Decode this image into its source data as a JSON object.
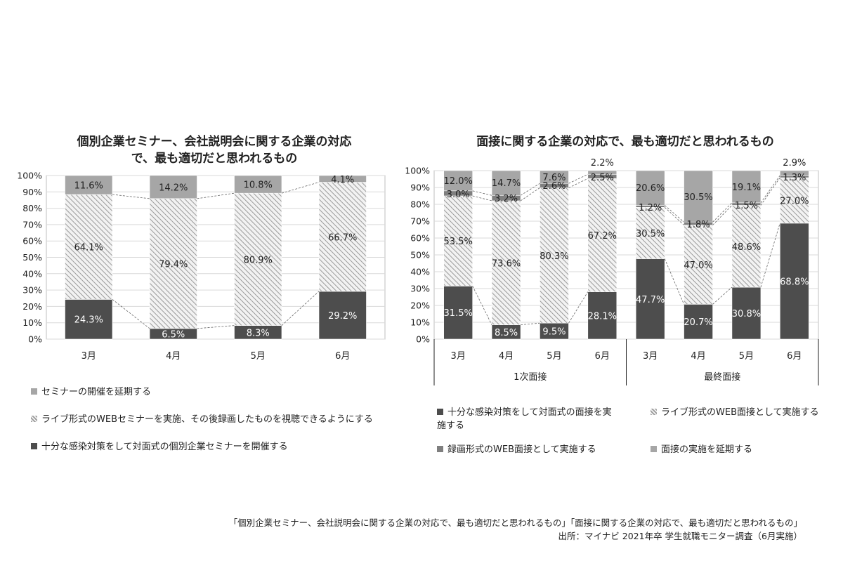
{
  "chart_data": [
    {
      "type": "bar",
      "stacked": true,
      "normalized": true,
      "title": "個別企業セミナー、会社説明会に関する企業の対応で、最も適切だと思われるもの",
      "categories": [
        "3月",
        "4月",
        "5月",
        "6月"
      ],
      "y_ticks": [
        "0%",
        "10%",
        "20%",
        "30%",
        "40%",
        "50%",
        "60%",
        "70%",
        "80%",
        "90%",
        "100%"
      ],
      "ylim": [
        0,
        100
      ],
      "grid": true,
      "legend_position": "bottom",
      "series": [
        {
          "name": "十分な感染対策をして対面式の個別企業セミナーを開催する",
          "values": [
            24.3,
            6.5,
            8.3,
            29.2
          ],
          "labels": [
            "24.3%",
            "6.5%",
            "8.3%",
            "29.2%"
          ],
          "color": "#4d4d4d"
        },
        {
          "name": "ライブ形式のWEBセミナーを実施、その後録画したものを視聴できるようにする",
          "values": [
            64.1,
            79.4,
            80.9,
            66.7
          ],
          "labels": [
            "64.1%",
            "79.4%",
            "80.9%",
            "66.7%"
          ],
          "color": "#d9d9d9"
        },
        {
          "name": "セミナーの開催を延期する",
          "values": [
            11.6,
            14.2,
            10.8,
            4.1
          ],
          "labels": [
            "11.6%",
            "14.2%",
            "10.8%",
            "4.1%"
          ],
          "color": "#a6a6a6"
        }
      ],
      "legend_order": [
        2,
        1,
        0
      ]
    },
    {
      "type": "bar",
      "stacked": true,
      "normalized": true,
      "title": "面接に関する企業の対応で、最も適切だと思われるもの",
      "categories": [
        "3月",
        "4月",
        "5月",
        "6月",
        "3月",
        "4月",
        "5月",
        "6月"
      ],
      "groups": [
        "1次面接",
        "最終面接"
      ],
      "y_ticks": [
        "0%",
        "10%",
        "20%",
        "30%",
        "40%",
        "50%",
        "60%",
        "70%",
        "80%",
        "90%",
        "100%"
      ],
      "ylim": [
        0,
        100
      ],
      "grid": true,
      "legend_position": "bottom",
      "series": [
        {
          "name": "十分な感染対策をして対面式の面接を実施する",
          "values": [
            31.5,
            8.5,
            9.5,
            28.1,
            47.7,
            20.7,
            30.8,
            68.8
          ],
          "labels": [
            "31.5%",
            "8.5%",
            "9.5%",
            "28.1%",
            "47.7%",
            "20.7%",
            "30.8%",
            "68.8%"
          ],
          "color": "#4d4d4d"
        },
        {
          "name": "ライブ形式のWEB面接として実施する",
          "values": [
            53.5,
            73.6,
            80.3,
            67.2,
            30.5,
            47.0,
            48.6,
            27.0
          ],
          "labels": [
            "53.5%",
            "73.6%",
            "80.3%",
            "67.2%",
            "30.5%",
            "47.0%",
            "48.6%",
            "27.0%"
          ],
          "color": "#d9d9d9"
        },
        {
          "name": "録画形式のWEB面接として実施する",
          "values": [
            3.0,
            3.2,
            2.6,
            2.5,
            1.2,
            1.8,
            1.5,
            1.3
          ],
          "labels": [
            "3.0%",
            "3.2%",
            "2.6%",
            "2.5%",
            "1.2%",
            "1.8%",
            "1.5%",
            "1.3%"
          ],
          "color": "#7f7f7f"
        },
        {
          "name": "面接の実施を延期する",
          "values": [
            12.0,
            14.7,
            7.6,
            2.2,
            20.6,
            30.5,
            19.1,
            2.9
          ],
          "labels": [
            "12.0%",
            "14.7%",
            "7.6%",
            "2.2%",
            "20.6%",
            "30.5%",
            "19.1%",
            "2.9%"
          ],
          "color": "#a6a6a6"
        }
      ],
      "legend_order": [
        0,
        1,
        2,
        3
      ]
    }
  ],
  "footnote": {
    "line1": "「個別企業セミナー、会社説明会に関する企業の対応で、最も適切だと思われるもの」「面接に関する企業の対応で、最も適切だと思われるもの」",
    "line2": "出所：マイナビ 2021年卒 学生就職モニター調査（6月実施）"
  }
}
